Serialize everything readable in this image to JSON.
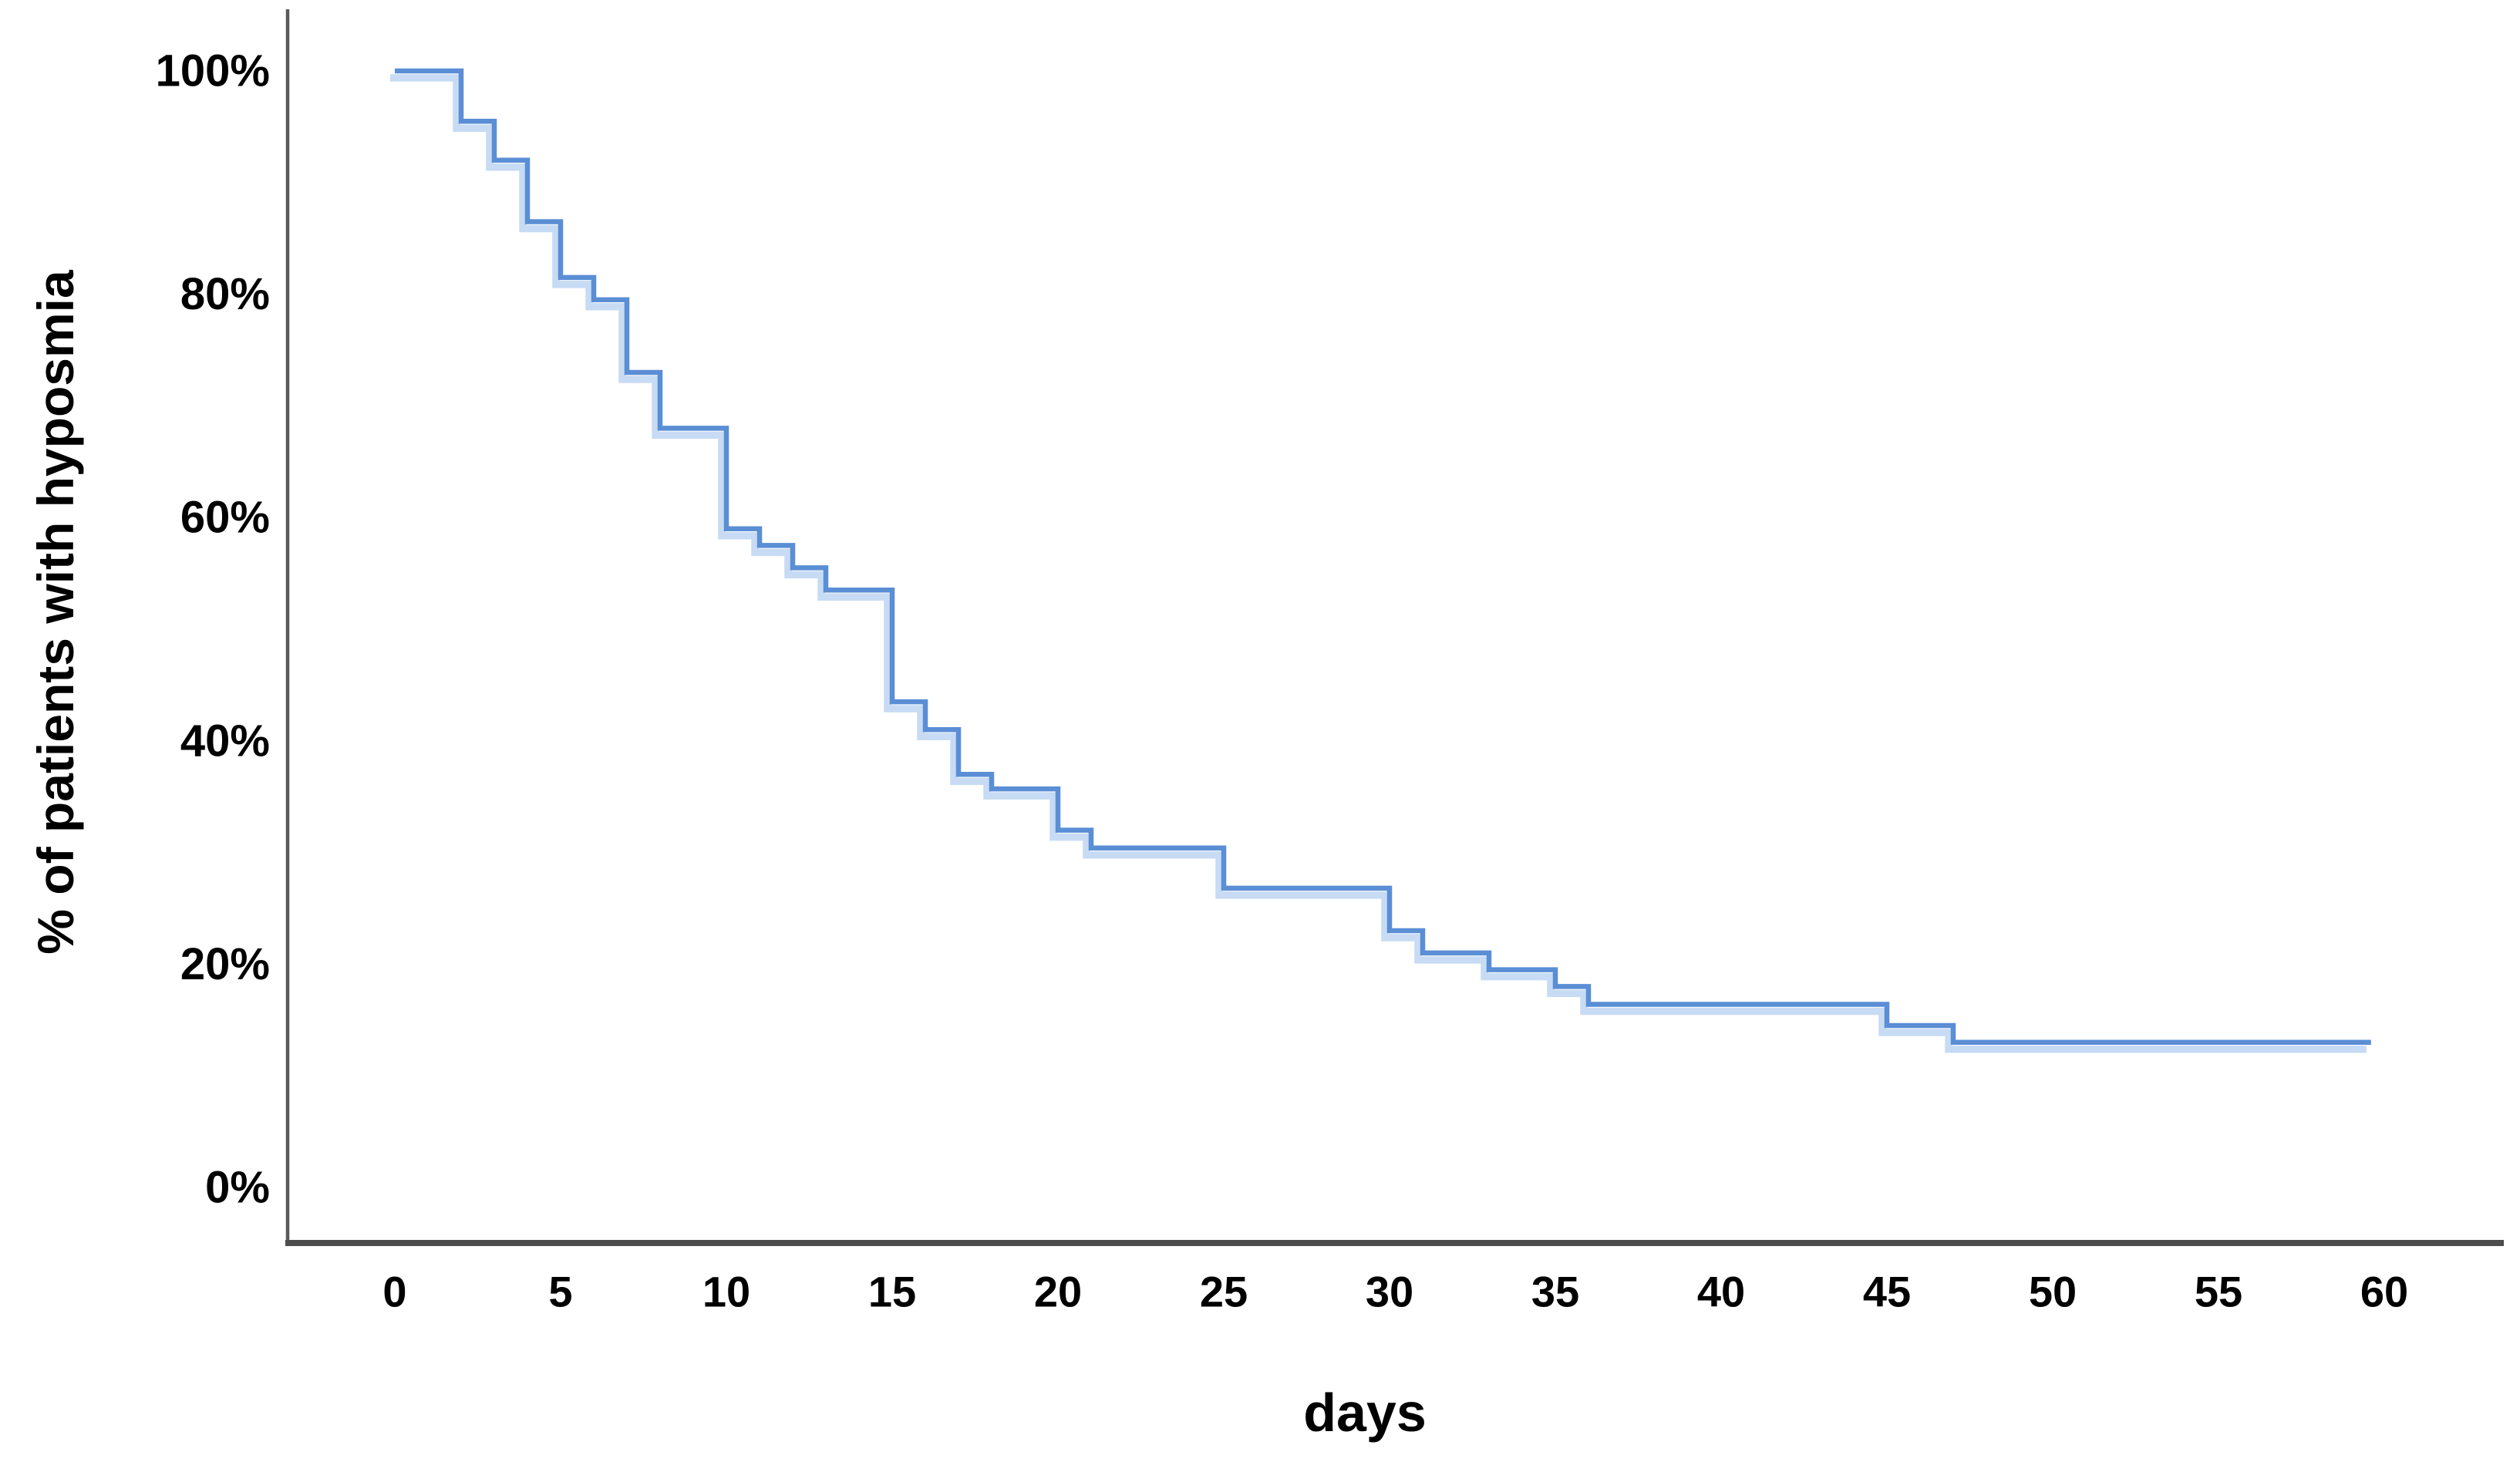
{
  "chart_data": {
    "type": "line",
    "line_style": "step-after",
    "title": "",
    "xlabel": "days",
    "ylabel": "% of patients with hyposmia",
    "xlim": [
      -3.2,
      63.6
    ],
    "ylim": [
      -5,
      105.7
    ],
    "grid": false,
    "legend": false,
    "x_ticks": [
      0,
      5,
      10,
      15,
      20,
      25,
      30,
      35,
      40,
      45,
      50,
      55,
      60
    ],
    "y_ticks": [
      {
        "value": 100,
        "label": "100%"
      },
      {
        "value": 80,
        "label": "80%"
      },
      {
        "value": 60,
        "label": "60%"
      },
      {
        "value": 40,
        "label": "40%"
      },
      {
        "value": 20,
        "label": "20%"
      },
      {
        "value": 0,
        "label": "0%"
      }
    ],
    "axis_color": "#4f4f4f",
    "series": [
      {
        "name": "percent of patients with hyposmia",
        "color": "#5a8ed5",
        "halo_color": "#c7dbf4",
        "end_day": 59.6,
        "steps": [
          {
            "day": 0,
            "pct": 100
          },
          {
            "day": 2,
            "pct": 95.5
          },
          {
            "day": 3,
            "pct": 92
          },
          {
            "day": 4,
            "pct": 86.5
          },
          {
            "day": 5,
            "pct": 81.5
          },
          {
            "day": 6,
            "pct": 79.5
          },
          {
            "day": 7,
            "pct": 73
          },
          {
            "day": 8,
            "pct": 68
          },
          {
            "day": 10,
            "pct": 59
          },
          {
            "day": 11,
            "pct": 57.5
          },
          {
            "day": 12,
            "pct": 55.5
          },
          {
            "day": 13,
            "pct": 53.5
          },
          {
            "day": 15,
            "pct": 43.5
          },
          {
            "day": 16,
            "pct": 41
          },
          {
            "day": 17,
            "pct": 37
          },
          {
            "day": 18,
            "pct": 35.7
          },
          {
            "day": 20,
            "pct": 32
          },
          {
            "day": 21,
            "pct": 30.4
          },
          {
            "day": 25,
            "pct": 26.8
          },
          {
            "day": 30,
            "pct": 23
          },
          {
            "day": 31,
            "pct": 21
          },
          {
            "day": 33,
            "pct": 19.5
          },
          {
            "day": 35,
            "pct": 18
          },
          {
            "day": 36,
            "pct": 16.4
          },
          {
            "day": 45,
            "pct": 14.5
          },
          {
            "day": 47,
            "pct": 13
          }
        ]
      }
    ]
  }
}
